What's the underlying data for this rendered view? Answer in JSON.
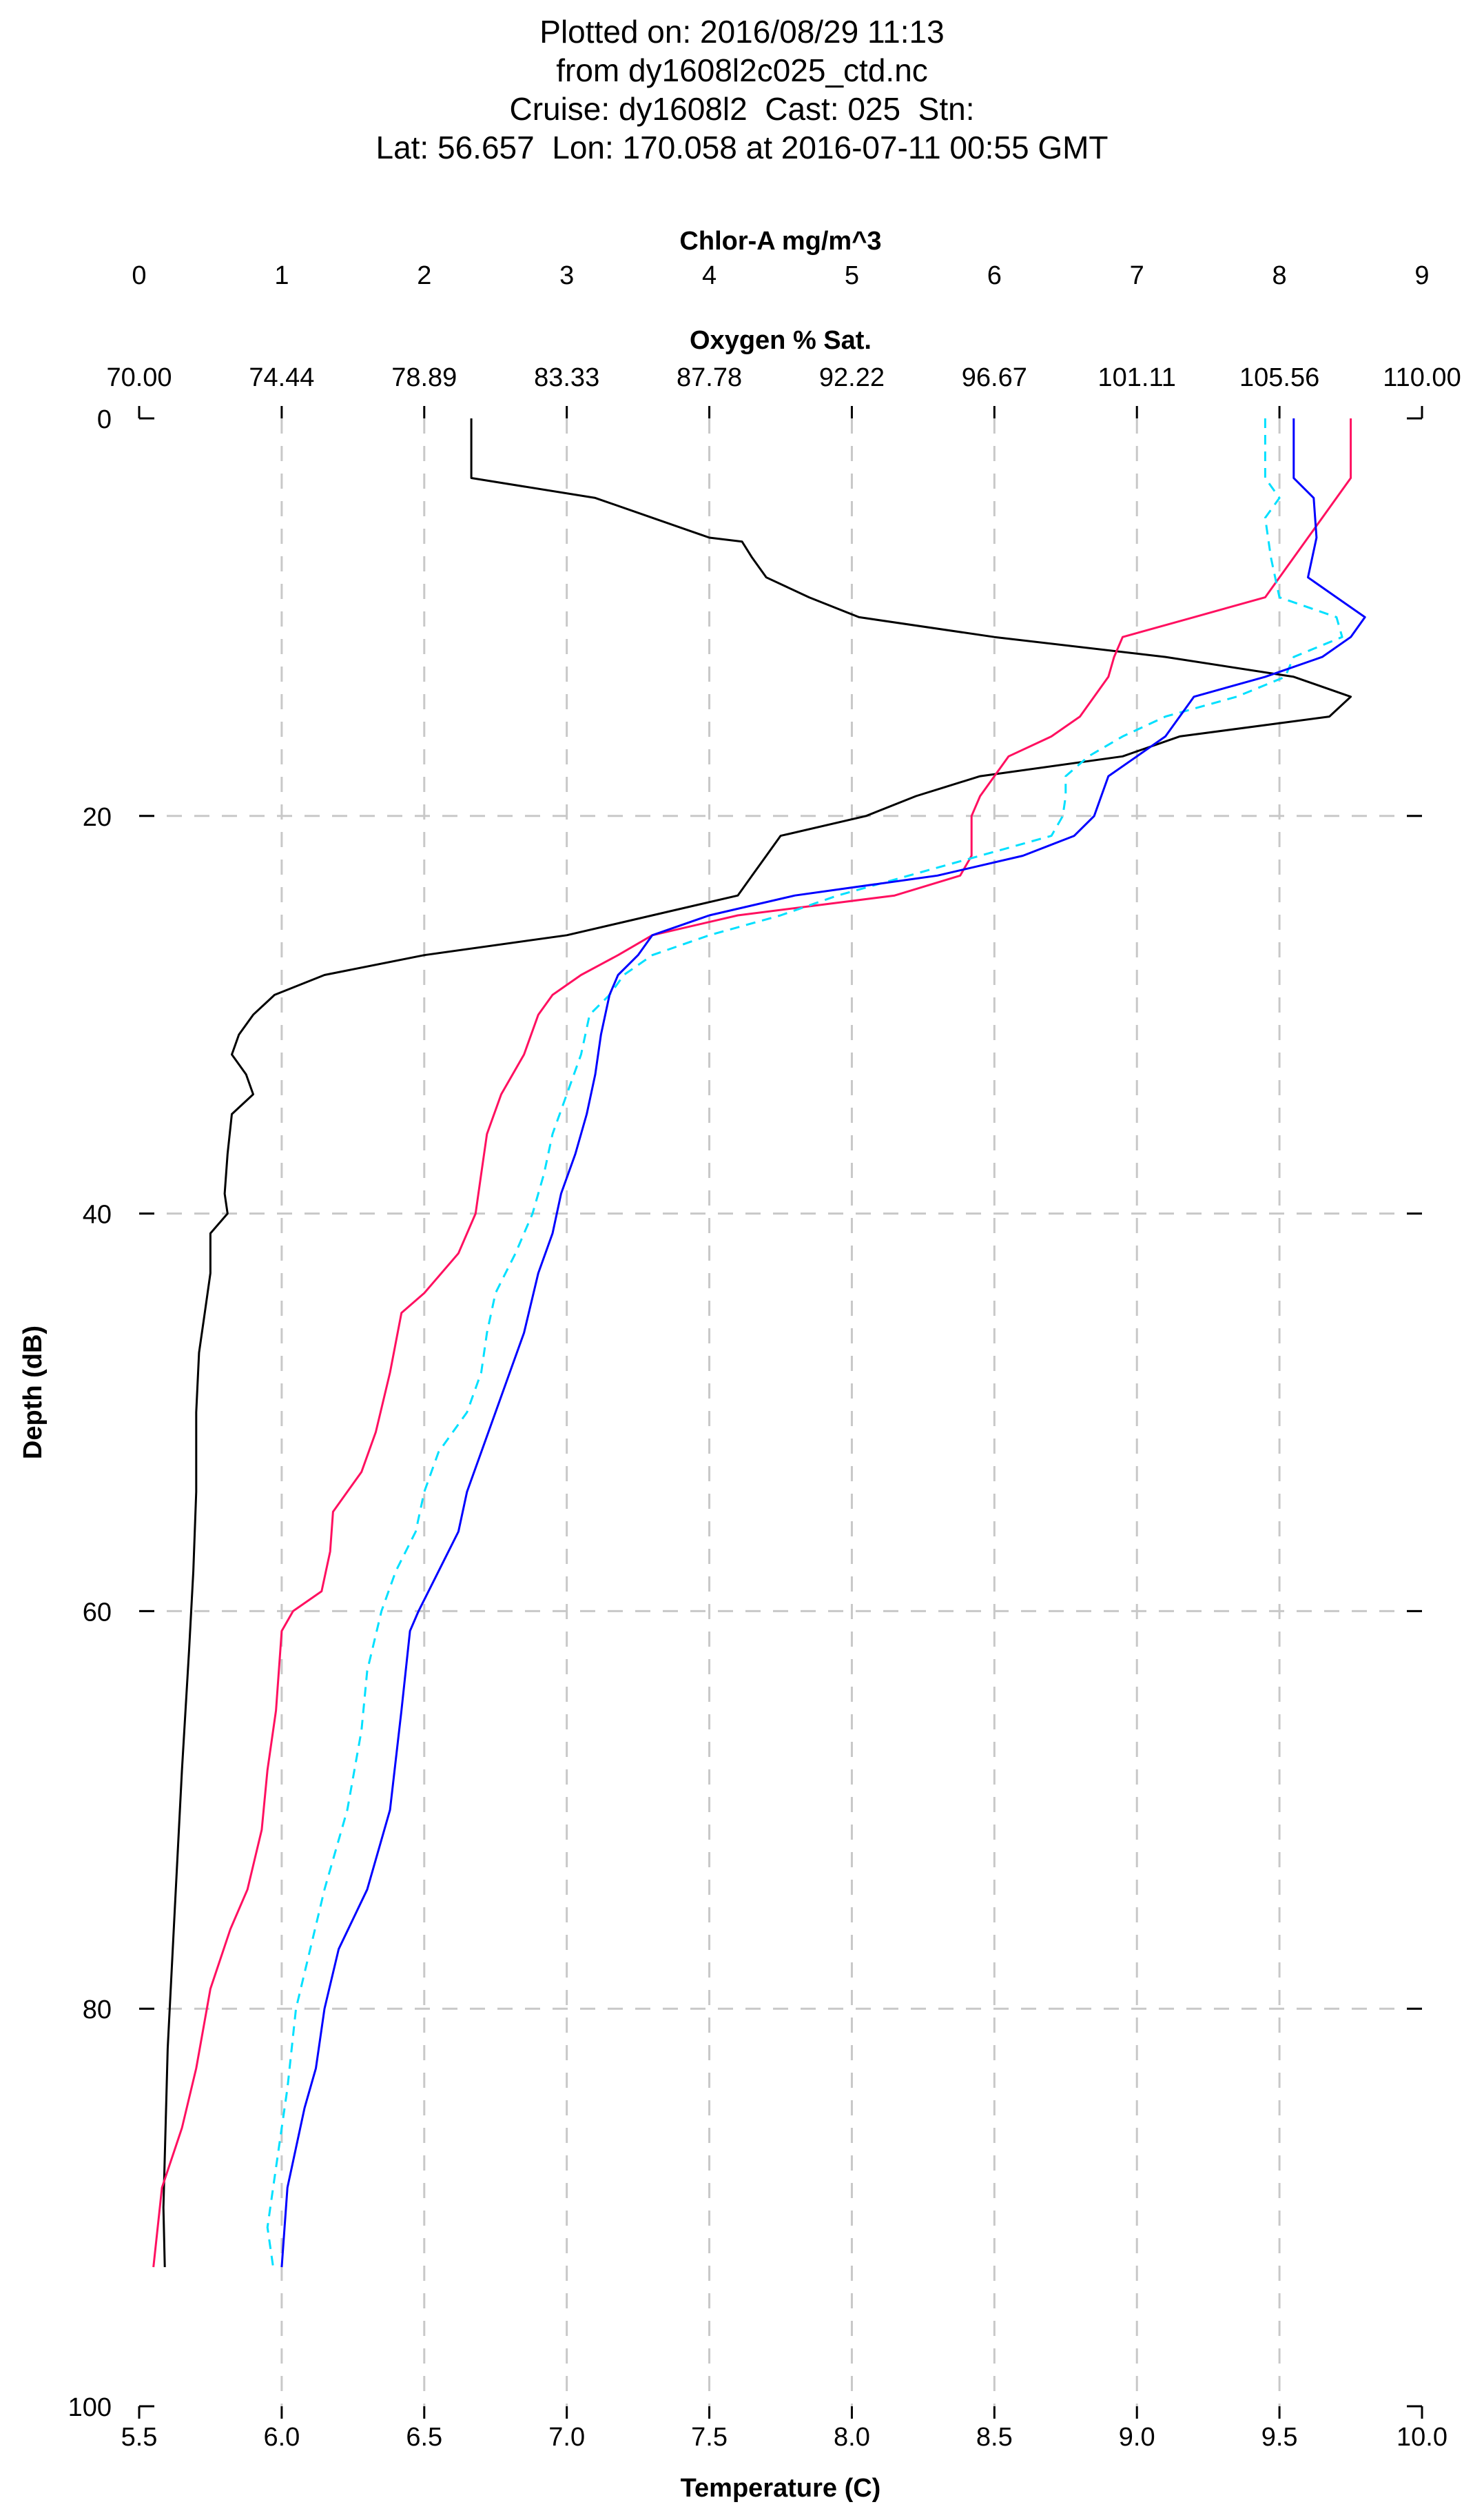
{
  "header": {
    "line1": "Plotted on: 2016/08/29 11:13",
    "line2": "from dy1608l2c025_ctd.nc",
    "line3": "Cruise: dy1608l2  Cast: 025  Stn:",
    "line4": "Lat: 56.657  Lon: 170.058 at 2016-07-11 00:55 GMT"
  },
  "chart_data": {
    "type": "line",
    "title": "Plotted on: 2016/08/29 11:13",
    "ylabel": "Depth (dB)",
    "ylim": [
      0,
      100
    ],
    "y_inverted": true,
    "grid": true,
    "axes": {
      "chlor": {
        "label": "Chlor-A mg/m^3",
        "lim": [
          0,
          9
        ],
        "ticks": [
          "0",
          "1",
          "2",
          "3",
          "4",
          "5",
          "6",
          "7",
          "8",
          "9"
        ]
      },
      "oxygen": {
        "label": "Oxygen % Sat.",
        "lim": [
          70,
          110
        ],
        "ticks": [
          "70.00",
          "74.44",
          "78.89",
          "83.33",
          "87.78",
          "92.22",
          "96.67",
          "101.11",
          "105.56",
          "110.00"
        ]
      },
      "temperature": {
        "label": "Temperature (C)",
        "lim": [
          5.5,
          10.0
        ],
        "ticks": [
          "5.5",
          "6.0",
          "6.5",
          "7.0",
          "7.5",
          "8.0",
          "8.5",
          "9.0",
          "9.5",
          "10.0"
        ]
      },
      "depth": {
        "label": "Depth (dB)",
        "ticks": [
          "0",
          "20",
          "40",
          "60",
          "80",
          "100"
        ]
      }
    },
    "series": [
      {
        "axis": "chlor",
        "color": "#000000",
        "style": "solid",
        "points": [
          [
            2.33,
            0
          ],
          [
            2.33,
            3
          ],
          [
            3.2,
            4
          ],
          [
            3.6,
            5
          ],
          [
            4,
            6
          ],
          [
            4.23,
            6.2
          ],
          [
            4.3,
            7
          ],
          [
            4.4,
            8
          ],
          [
            4.7,
            9
          ],
          [
            5.05,
            10
          ],
          [
            6,
            11
          ],
          [
            7.2,
            12
          ],
          [
            8.1,
            13
          ],
          [
            8.5,
            14
          ],
          [
            8.35,
            15
          ],
          [
            7.3,
            16
          ],
          [
            6.9,
            17
          ],
          [
            5.9,
            18
          ],
          [
            5.45,
            19
          ],
          [
            5.1,
            20
          ],
          [
            4.5,
            21
          ],
          [
            4.4,
            22
          ],
          [
            4.3,
            23
          ],
          [
            4.2,
            24
          ],
          [
            3.6,
            25
          ],
          [
            3.0,
            26
          ],
          [
            2.0,
            27
          ],
          [
            1.3,
            28
          ],
          [
            0.95,
            29
          ],
          [
            0.8,
            30
          ],
          [
            0.7,
            31
          ],
          [
            0.65,
            32
          ],
          [
            0.75,
            33
          ],
          [
            0.8,
            34
          ],
          [
            0.65,
            35
          ],
          [
            0.62,
            37
          ],
          [
            0.6,
            39
          ],
          [
            0.62,
            40
          ],
          [
            0.5,
            41
          ],
          [
            0.5,
            43
          ],
          [
            0.46,
            45
          ],
          [
            0.42,
            47
          ],
          [
            0.4,
            50
          ],
          [
            0.4,
            54
          ],
          [
            0.38,
            58
          ],
          [
            0.35,
            62
          ],
          [
            0.3,
            68
          ],
          [
            0.25,
            75
          ],
          [
            0.2,
            82
          ],
          [
            0.17,
            90
          ],
          [
            0.18,
            93
          ]
        ]
      },
      {
        "axis": "temperature",
        "color": "#ff1060",
        "style": "solid",
        "points": [
          [
            9.75,
            0
          ],
          [
            9.75,
            3
          ],
          [
            9.7,
            4
          ],
          [
            9.65,
            5
          ],
          [
            9.55,
            7
          ],
          [
            9.45,
            9
          ],
          [
            9.2,
            10
          ],
          [
            8.95,
            11
          ],
          [
            8.92,
            12
          ],
          [
            8.9,
            13
          ],
          [
            8.8,
            15
          ],
          [
            8.7,
            16
          ],
          [
            8.55,
            17
          ],
          [
            8.5,
            18
          ],
          [
            8.45,
            19
          ],
          [
            8.42,
            20
          ],
          [
            8.42,
            22
          ],
          [
            8.38,
            23
          ],
          [
            8.15,
            24
          ],
          [
            7.6,
            25
          ],
          [
            7.3,
            26
          ],
          [
            7.18,
            27
          ],
          [
            7.05,
            28
          ],
          [
            6.95,
            29
          ],
          [
            6.9,
            30
          ],
          [
            6.85,
            32
          ],
          [
            6.77,
            34
          ],
          [
            6.72,
            36
          ],
          [
            6.7,
            38
          ],
          [
            6.68,
            40
          ],
          [
            6.62,
            42
          ],
          [
            6.5,
            44
          ],
          [
            6.42,
            45
          ],
          [
            6.38,
            48
          ],
          [
            6.33,
            51
          ],
          [
            6.28,
            53
          ],
          [
            6.18,
            55
          ],
          [
            6.17,
            57
          ],
          [
            6.14,
            59
          ],
          [
            6.04,
            60
          ],
          [
            6.0,
            61
          ],
          [
            5.98,
            65
          ],
          [
            5.95,
            68
          ],
          [
            5.93,
            71
          ],
          [
            5.88,
            74
          ],
          [
            5.82,
            76
          ],
          [
            5.75,
            79
          ],
          [
            5.7,
            83
          ],
          [
            5.65,
            86
          ],
          [
            5.58,
            89
          ],
          [
            5.55,
            93
          ]
        ]
      },
      {
        "axis": "temperature",
        "color": "#00e0ff",
        "style": "dashed",
        "points": [
          [
            9.45,
            0
          ],
          [
            9.45,
            3
          ],
          [
            9.5,
            4
          ],
          [
            9.45,
            5
          ],
          [
            9.47,
            7
          ],
          [
            9.5,
            9
          ],
          [
            9.7,
            10
          ],
          [
            9.72,
            11
          ],
          [
            9.55,
            12
          ],
          [
            9.52,
            13
          ],
          [
            9.35,
            14
          ],
          [
            9.1,
            15
          ],
          [
            8.95,
            16
          ],
          [
            8.83,
            17
          ],
          [
            8.75,
            18
          ],
          [
            8.75,
            19
          ],
          [
            8.74,
            20
          ],
          [
            8.7,
            21
          ],
          [
            8.45,
            22
          ],
          [
            8.2,
            23
          ],
          [
            7.95,
            24
          ],
          [
            7.75,
            25
          ],
          [
            7.5,
            26
          ],
          [
            7.3,
            27
          ],
          [
            7.2,
            28
          ],
          [
            7.15,
            29
          ],
          [
            7.08,
            30
          ],
          [
            7.05,
            32
          ],
          [
            7.0,
            34
          ],
          [
            6.95,
            36
          ],
          [
            6.92,
            38
          ],
          [
            6.88,
            40
          ],
          [
            6.82,
            42
          ],
          [
            6.75,
            44
          ],
          [
            6.72,
            46
          ],
          [
            6.7,
            48
          ],
          [
            6.65,
            50
          ],
          [
            6.55,
            52
          ],
          [
            6.5,
            54
          ],
          [
            6.47,
            56
          ],
          [
            6.4,
            58
          ],
          [
            6.35,
            60
          ],
          [
            6.3,
            63
          ],
          [
            6.28,
            66
          ],
          [
            6.23,
            70
          ],
          [
            6.15,
            74
          ],
          [
            6.1,
            77
          ],
          [
            6.05,
            80
          ],
          [
            6.02,
            84
          ],
          [
            5.98,
            88
          ],
          [
            5.95,
            91
          ],
          [
            5.97,
            93
          ]
        ]
      },
      {
        "axis": "temperature",
        "color": "#0000ff",
        "style": "solid",
        "points": [
          [
            9.55,
            0
          ],
          [
            9.55,
            3
          ],
          [
            9.62,
            4
          ],
          [
            9.63,
            6
          ],
          [
            9.6,
            8
          ],
          [
            9.7,
            9
          ],
          [
            9.8,
            10
          ],
          [
            9.75,
            11
          ],
          [
            9.65,
            12
          ],
          [
            9.45,
            13
          ],
          [
            9.2,
            14
          ],
          [
            9.1,
            16
          ],
          [
            9.0,
            17
          ],
          [
            8.9,
            18
          ],
          [
            8.85,
            20
          ],
          [
            8.78,
            21
          ],
          [
            8.6,
            22
          ],
          [
            8.3,
            23
          ],
          [
            7.8,
            24
          ],
          [
            7.5,
            25
          ],
          [
            7.3,
            26
          ],
          [
            7.25,
            27
          ],
          [
            7.18,
            28
          ],
          [
            7.15,
            29
          ],
          [
            7.12,
            31
          ],
          [
            7.1,
            33
          ],
          [
            7.07,
            35
          ],
          [
            7.03,
            37
          ],
          [
            6.98,
            39
          ],
          [
            6.95,
            41
          ],
          [
            6.9,
            43
          ],
          [
            6.85,
            46
          ],
          [
            6.8,
            48
          ],
          [
            6.75,
            50
          ],
          [
            6.7,
            52
          ],
          [
            6.65,
            54
          ],
          [
            6.62,
            56
          ],
          [
            6.55,
            58
          ],
          [
            6.48,
            60
          ],
          [
            6.45,
            61
          ],
          [
            6.42,
            65
          ],
          [
            6.38,
            70
          ],
          [
            6.3,
            74
          ],
          [
            6.2,
            77
          ],
          [
            6.15,
            80
          ],
          [
            6.12,
            83
          ],
          [
            6.08,
            85
          ],
          [
            6.05,
            87
          ],
          [
            6.02,
            89
          ],
          [
            6.0,
            93
          ]
        ]
      }
    ]
  }
}
